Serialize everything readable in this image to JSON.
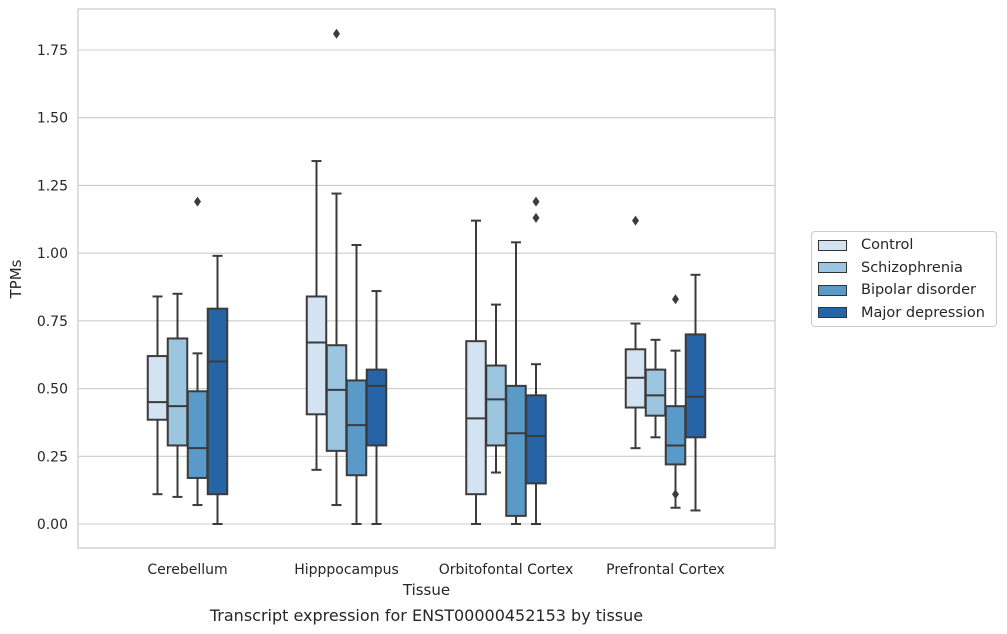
{
  "caption": "Transcript expression for ENST00000452153 by tissue",
  "chart_data": {
    "type": "box",
    "xlabel": "Tissue",
    "ylabel": "TPMs",
    "ylim": [
      -0.085,
      1.89
    ],
    "yticks": [
      "0.00",
      "0.25",
      "0.50",
      "0.75",
      "1.00",
      "1.25",
      "1.50",
      "1.75"
    ],
    "grid": "horizontal",
    "legend_position": "right",
    "categories": [
      "Cerebellum",
      "Hipppocampus",
      "Orbitofontal Cortex",
      "Prefrontal Cortex"
    ],
    "series": [
      {
        "name": "Control",
        "color": "#d3e3f2",
        "boxes": [
          {
            "whislo": 0.11,
            "q1": 0.385,
            "med": 0.45,
            "q3": 0.62,
            "whishi": 0.84,
            "fliers": []
          },
          {
            "whislo": 0.2,
            "q1": 0.405,
            "med": 0.67,
            "q3": 0.84,
            "whishi": 1.34,
            "fliers": []
          },
          {
            "whislo": 0.0,
            "q1": 0.11,
            "med": 0.39,
            "q3": 0.675,
            "whishi": 1.12,
            "fliers": []
          },
          {
            "whislo": 0.28,
            "q1": 0.43,
            "med": 0.54,
            "q3": 0.645,
            "whishi": 0.74,
            "fliers": [
              1.12
            ]
          }
        ]
      },
      {
        "name": "Schizophrenia",
        "color": "#9cc5e0",
        "boxes": [
          {
            "whislo": 0.1,
            "q1": 0.29,
            "med": 0.435,
            "q3": 0.685,
            "whishi": 0.85,
            "fliers": []
          },
          {
            "whislo": 0.07,
            "q1": 0.27,
            "med": 0.495,
            "q3": 0.66,
            "whishi": 1.22,
            "fliers": [
              1.81
            ]
          },
          {
            "whislo": 0.19,
            "q1": 0.29,
            "med": 0.46,
            "q3": 0.585,
            "whishi": 0.81,
            "fliers": []
          },
          {
            "whislo": 0.32,
            "q1": 0.4,
            "med": 0.475,
            "q3": 0.57,
            "whishi": 0.68,
            "fliers": []
          }
        ]
      },
      {
        "name": "Bipolar disorder",
        "color": "#5a9ac9",
        "boxes": [
          {
            "whislo": 0.07,
            "q1": 0.17,
            "med": 0.28,
            "q3": 0.49,
            "whishi": 0.63,
            "fliers": [
              1.19
            ]
          },
          {
            "whislo": 0.0,
            "q1": 0.18,
            "med": 0.365,
            "q3": 0.53,
            "whishi": 1.03,
            "fliers": []
          },
          {
            "whislo": 0.0,
            "q1": 0.03,
            "med": 0.335,
            "q3": 0.51,
            "whishi": 1.04,
            "fliers": []
          },
          {
            "whislo": 0.06,
            "q1": 0.22,
            "med": 0.29,
            "q3": 0.435,
            "whishi": 0.64,
            "fliers": [
              0.11,
              0.83
            ]
          }
        ]
      },
      {
        "name": "Major depression",
        "color": "#2664a6",
        "boxes": [
          {
            "whislo": 0.0,
            "q1": 0.11,
            "med": 0.6,
            "q3": 0.795,
            "whishi": 0.99,
            "fliers": []
          },
          {
            "whislo": 0.0,
            "q1": 0.29,
            "med": 0.51,
            "q3": 0.57,
            "whishi": 0.86,
            "fliers": []
          },
          {
            "whislo": 0.0,
            "q1": 0.15,
            "med": 0.325,
            "q3": 0.475,
            "whishi": 0.59,
            "fliers": [
              1.13,
              1.19
            ]
          },
          {
            "whislo": 0.05,
            "q1": 0.32,
            "med": 0.47,
            "q3": 0.7,
            "whishi": 0.92,
            "fliers": []
          }
        ]
      }
    ]
  }
}
